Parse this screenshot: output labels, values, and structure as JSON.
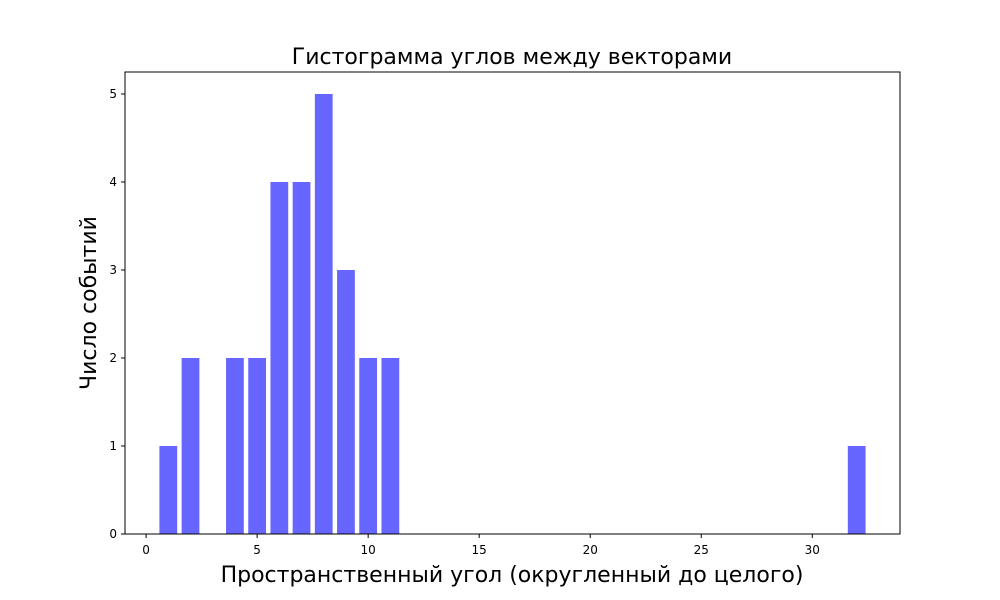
{
  "chart_data": {
    "type": "bar",
    "title": "Гистограмма углов между векторами",
    "xlabel": "Пространственный угол (округленный до целого)",
    "ylabel": "Число событий",
    "x": [
      1,
      2,
      4,
      5,
      6,
      7,
      8,
      9,
      10,
      11,
      32
    ],
    "values": [
      1,
      2,
      2,
      2,
      4,
      4,
      5,
      3,
      2,
      2,
      1
    ],
    "xlim": [
      -0.95,
      33.95
    ],
    "ylim": [
      0,
      5.25
    ],
    "xticks": [
      0,
      5,
      10,
      15,
      20,
      25,
      30
    ],
    "yticks": [
      0,
      1,
      2,
      3,
      4,
      5
    ],
    "bar_color": "#6666ff",
    "grid": false,
    "legend": false
  }
}
